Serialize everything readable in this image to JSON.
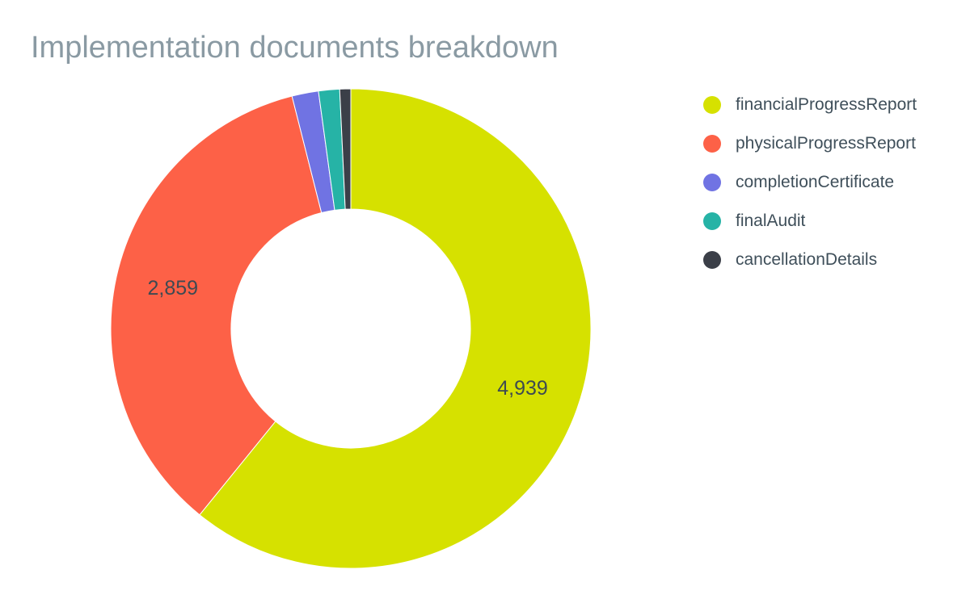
{
  "chart_data": {
    "type": "pie",
    "variant": "donut",
    "title": "Implementation documents breakdown",
    "categories": [
      "financialProgressReport",
      "physicalProgressReport",
      "completionCertificate",
      "finalAudit",
      "cancellationDetails"
    ],
    "values": [
      4939,
      2859,
      145,
      115,
      60
    ],
    "data_labels": [
      "4,939",
      "2,859",
      "",
      "",
      ""
    ],
    "colors": [
      "#d6e100",
      "#fd6147",
      "#7073e3",
      "#26b3a6",
      "#3b3f48"
    ],
    "legend_position": "right"
  }
}
